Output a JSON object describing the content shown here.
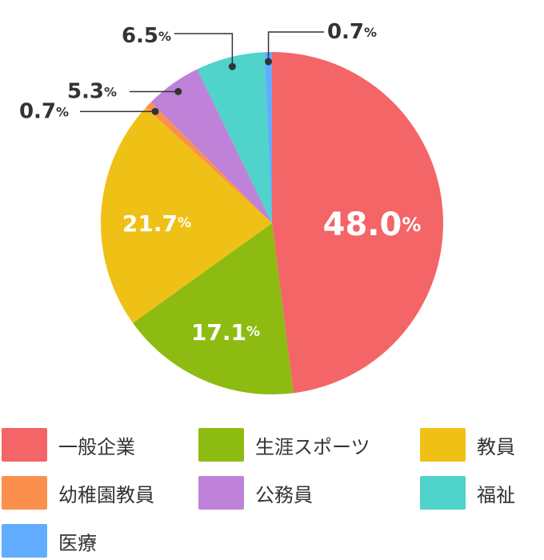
{
  "chart_data": {
    "type": "pie",
    "slices": [
      {
        "label": "一般企業",
        "value": 48.0,
        "display": "48.0",
        "color": "#f46567"
      },
      {
        "label": "生涯スポーツ",
        "value": 17.1,
        "display": "17.1",
        "color": "#8dbb11"
      },
      {
        "label": "教員",
        "value": 21.7,
        "display": "21.7",
        "color": "#efc116"
      },
      {
        "label": "幼稚園教員",
        "value": 0.7,
        "display": "0.7",
        "color": "#fb904e"
      },
      {
        "label": "公務員",
        "value": 5.3,
        "display": "5.3",
        "color": "#bf82d9"
      },
      {
        "label": "福祉",
        "value": 6.5,
        "display": "6.5",
        "color": "#4fd3ca"
      },
      {
        "label": "医療",
        "value": 0.7,
        "display": "0.7",
        "color": "#62acff"
      }
    ],
    "unit": "%",
    "legend_position": "bottom"
  }
}
